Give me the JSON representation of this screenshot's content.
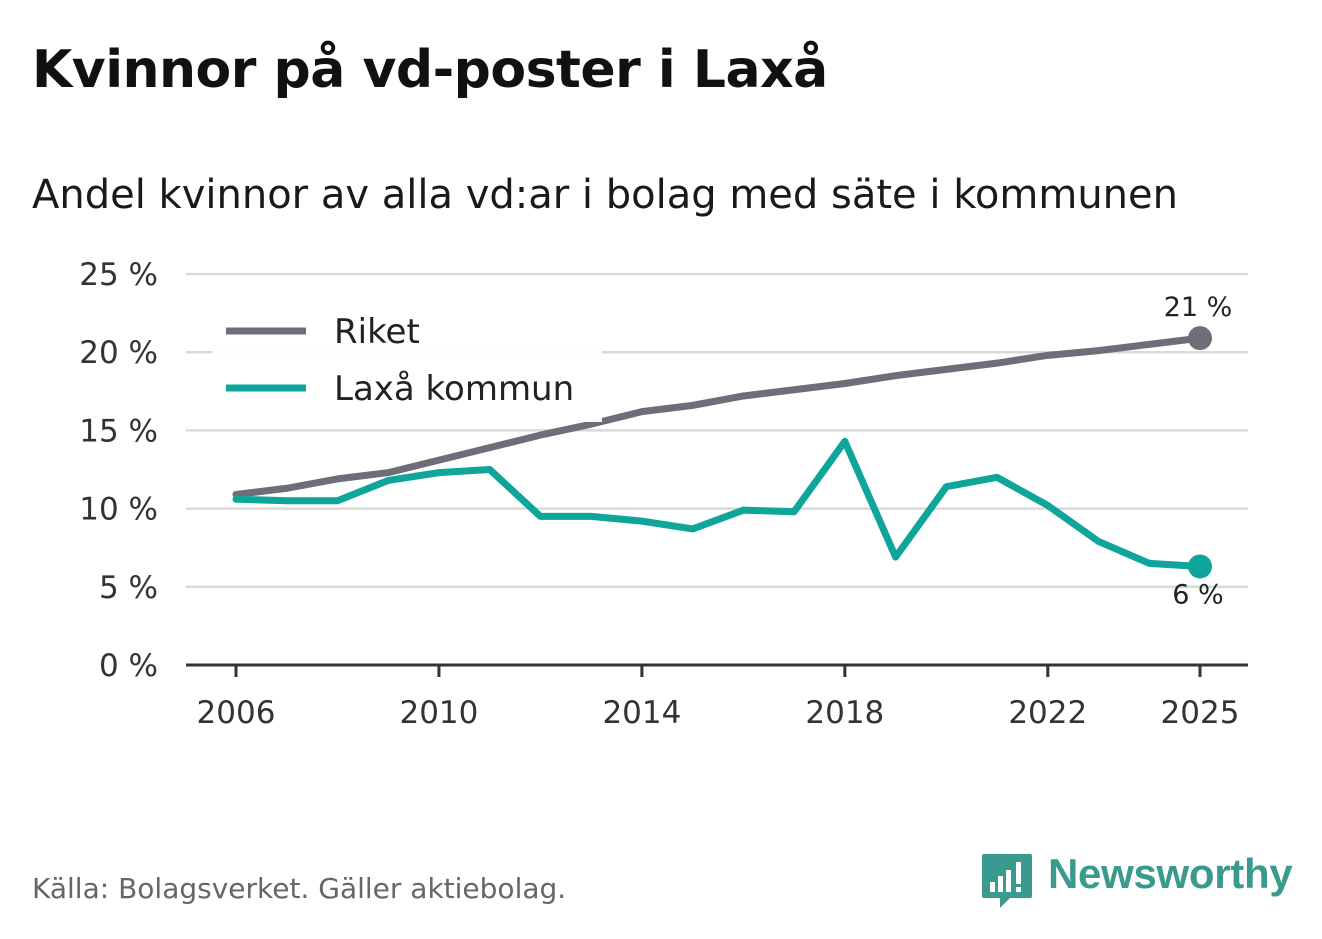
{
  "header": {
    "title": "Kvinnor på vd-poster i Laxå",
    "subtitle": "Andel kvinnor av alla vd:ar i bolag med säte i kommunen"
  },
  "footer": {
    "source": "Källa: Bolagsverket. Gäller aktiebolag.",
    "brand": "Newsworthy"
  },
  "colors": {
    "riket": "#6e6e78",
    "laxa": "#0ea59a",
    "grid": "#d9d9d9",
    "axis": "#333333",
    "brand": "#3a9a8e"
  },
  "chart_data": {
    "type": "line",
    "title": "Kvinnor på vd-poster i Laxå",
    "subtitle": "Andel kvinnor av alla vd:ar i bolag med säte i kommunen",
    "xlabel": "",
    "ylabel": "",
    "x": [
      2006,
      2007,
      2008,
      2009,
      2010,
      2011,
      2012,
      2013,
      2014,
      2015,
      2016,
      2017,
      2018,
      2019,
      2020,
      2021,
      2022,
      2023,
      2024,
      2025
    ],
    "xticks": [
      2006,
      2010,
      2014,
      2018,
      2022,
      2025
    ],
    "xtick_labels": [
      "2006",
      "2010",
      "2014",
      "2018",
      "2022",
      "2025"
    ],
    "ylim": [
      0,
      25
    ],
    "yticks": [
      0,
      5,
      10,
      15,
      20,
      25
    ],
    "ytick_labels": [
      "0 %",
      "5 %",
      "10 %",
      "15 %",
      "20 %",
      "25 %"
    ],
    "grid": true,
    "legend_position": "top-left",
    "series": [
      {
        "name": "Riket",
        "color": "#6e6e78",
        "values": [
          10.9,
          11.3,
          11.9,
          12.3,
          13.1,
          13.9,
          14.7,
          15.4,
          16.2,
          16.6,
          17.2,
          17.6,
          18.0,
          18.5,
          18.9,
          19.3,
          19.8,
          20.1,
          20.5,
          20.9
        ],
        "end_label": "21 %"
      },
      {
        "name": "Laxå kommun",
        "color": "#0ea59a",
        "values": [
          10.6,
          10.5,
          10.5,
          11.8,
          12.3,
          12.5,
          9.5,
          9.5,
          9.2,
          8.7,
          9.9,
          9.8,
          14.3,
          6.9,
          11.4,
          12.0,
          10.2,
          7.9,
          6.5,
          6.3
        ],
        "end_label": "6 %"
      }
    ]
  }
}
